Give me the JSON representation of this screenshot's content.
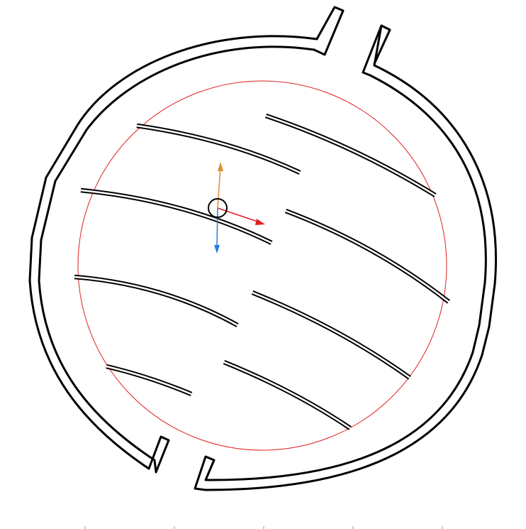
{
  "viewport": {
    "name": "cad-viewport"
  },
  "gizmo": {
    "x_axis_color": "#e02020",
    "y_axis_color": "#e08a30",
    "z_axis_color": "#2080e0",
    "pivot_icon": "circle-pivot-icon"
  },
  "colors": {
    "outline": "#000000",
    "reference_circle": "#e02020",
    "background": "#ffffff"
  },
  "ruler": {
    "tick_count": 5
  }
}
